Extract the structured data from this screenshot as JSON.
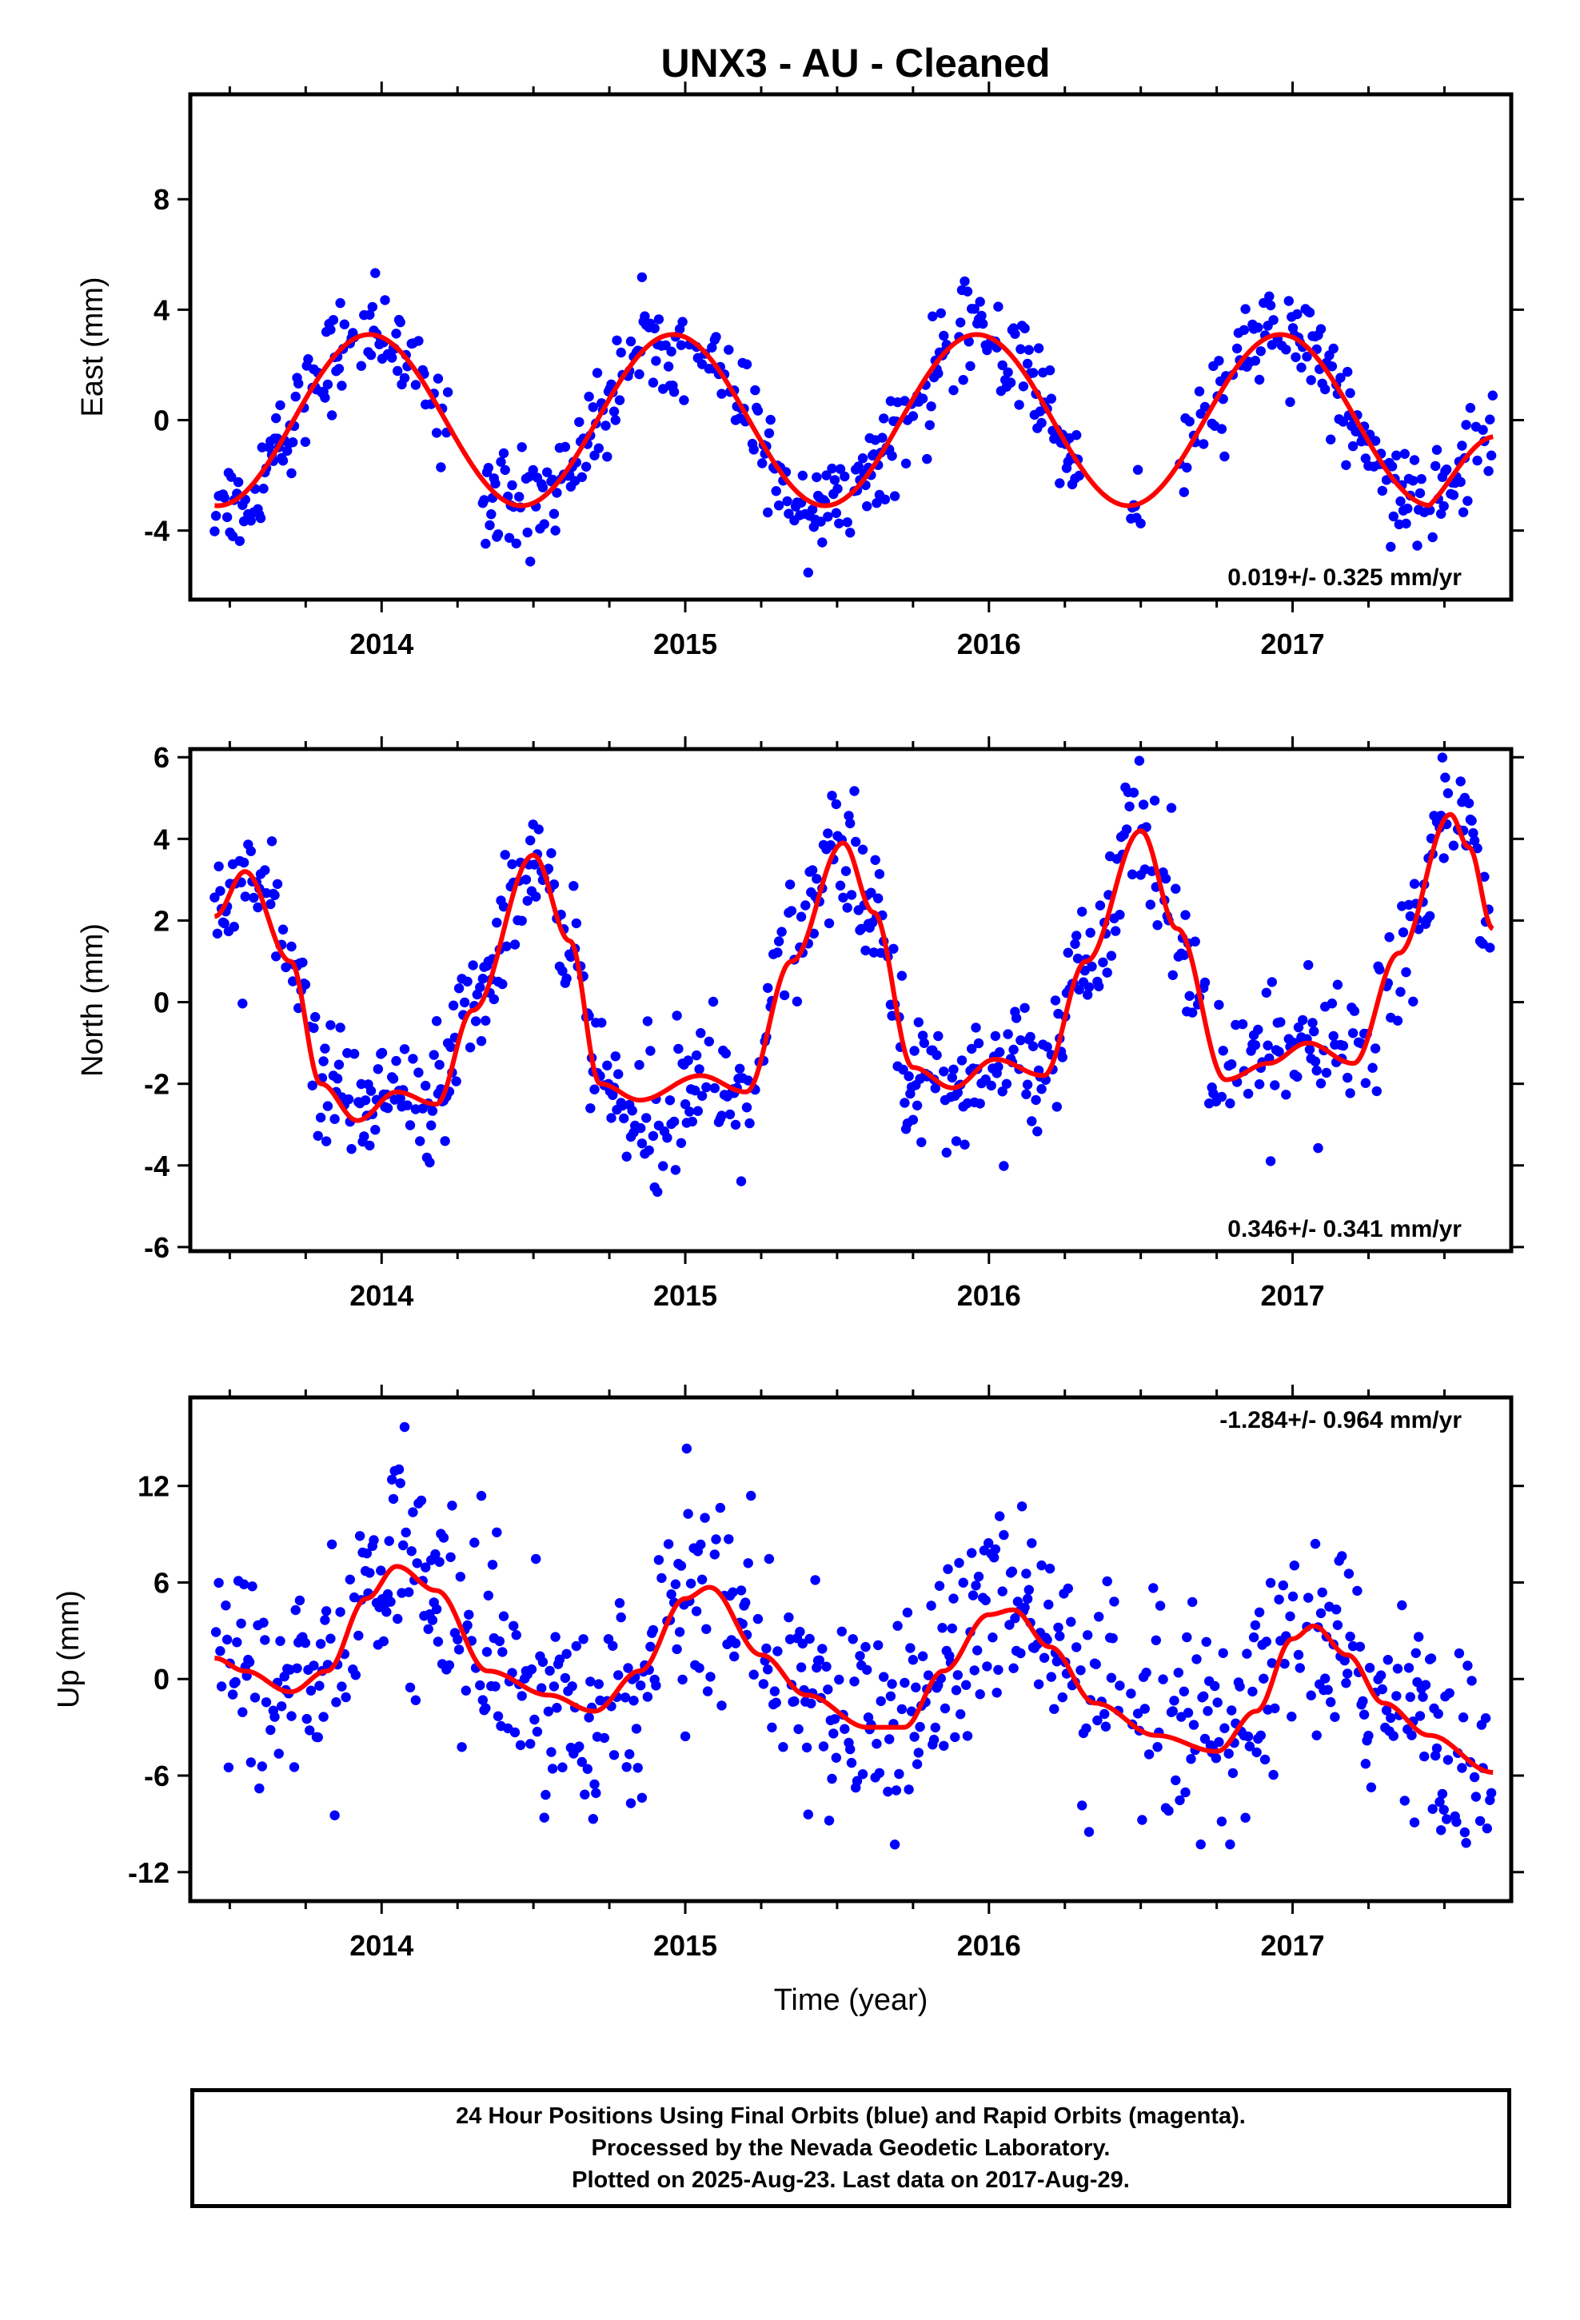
{
  "chart_data": [
    {
      "type": "scatter",
      "title": "UNX3  - AU - Cleaned",
      "ylabel": "East (mm)",
      "xlabel": "",
      "xlim": [
        2013.37,
        2017.72
      ],
      "ylim": [
        -6.5,
        11.8
      ],
      "xticks": [
        "2014",
        "2015",
        "2016",
        "2017"
      ],
      "yticks": [
        "8",
        "4",
        "0",
        "-4"
      ],
      "ytick_values": [
        8,
        4,
        0,
        -4
      ],
      "rate_label": "0.019+/- 0.325 mm/yr",
      "rate_position": "bottom-right",
      "grid": false,
      "series": [
        {
          "values_model": {
            "amplitude_mm": 3.1,
            "period_yr": 1.0,
            "peak_fraction": 0.96,
            "mean_mm": 0.0,
            "noise_mm": 0.9
          }
        },
        {
          "fit": {
            "amplitude_mm": 3.1,
            "period_yr": 1.0,
            "peak_fraction": 0.96,
            "mean_mm": 0.0,
            "end_value_mm": -0.6
          }
        }
      ],
      "data_span": [
        2013.45,
        2017.66
      ],
      "data_gaps": [
        [
          2014.22,
          2014.33
        ],
        [
          2016.3,
          2016.45
        ],
        [
          2016.5,
          2016.62
        ]
      ]
    },
    {
      "type": "scatter",
      "ylabel": "North (mm)",
      "xlabel": "",
      "xlim": [
        2013.37,
        2017.72
      ],
      "ylim": [
        -6.1,
        6.2
      ],
      "xticks": [
        "2014",
        "2015",
        "2016",
        "2017"
      ],
      "yticks": [
        "6",
        "4",
        "2",
        "0",
        "-2",
        "-4",
        "-6"
      ],
      "ytick_values": [
        6,
        4,
        2,
        0,
        -2,
        -4,
        -6
      ],
      "rate_label": "0.346+/- 0.341 mm/yr",
      "rate_position": "bottom-right",
      "grid": false,
      "series": [
        {
          "fit_knots": [
            [
              2013.45,
              2.1
            ],
            [
              2013.55,
              3.2
            ],
            [
              2013.7,
              1.0
            ],
            [
              2013.8,
              -2.0
            ],
            [
              2013.92,
              -2.9
            ],
            [
              2014.05,
              -2.2
            ],
            [
              2014.18,
              -2.5
            ],
            [
              2014.3,
              -0.2
            ],
            [
              2014.5,
              3.6
            ],
            [
              2014.62,
              1.5
            ],
            [
              2014.72,
              -2.0
            ],
            [
              2014.85,
              -2.4
            ],
            [
              2015.05,
              -1.8
            ],
            [
              2015.2,
              -2.2
            ],
            [
              2015.35,
              1.0
            ],
            [
              2015.52,
              3.9
            ],
            [
              2015.62,
              2.2
            ],
            [
              2015.75,
              -1.6
            ],
            [
              2015.88,
              -2.1
            ],
            [
              2016.02,
              -1.4
            ],
            [
              2016.18,
              -1.8
            ],
            [
              2016.32,
              1.0
            ],
            [
              2016.5,
              4.2
            ],
            [
              2016.62,
              1.8
            ],
            [
              2016.78,
              -1.9
            ],
            [
              2016.92,
              -1.5
            ],
            [
              2017.05,
              -1.0
            ],
            [
              2017.2,
              -1.5
            ],
            [
              2017.35,
              1.2
            ],
            [
              2017.52,
              4.6
            ],
            [
              2017.58,
              3.8
            ],
            [
              2017.66,
              1.8
            ]
          ],
          "noise_mm": 0.8
        }
      ],
      "data_span": [
        2013.45,
        2017.66
      ]
    },
    {
      "type": "scatter",
      "ylabel": "Up (mm)",
      "xlabel": "Time (year)",
      "xlim": [
        2013.37,
        2017.72
      ],
      "ylim": [
        -13.8,
        17.5
      ],
      "xticks": [
        "2014",
        "2015",
        "2016",
        "2017"
      ],
      "yticks": [
        "12",
        "6",
        "0",
        "-6",
        "-12"
      ],
      "ytick_values": [
        12,
        6,
        0,
        -6,
        -12
      ],
      "rate_label": "-1.284+/- 0.964 mm/yr",
      "rate_position": "top-right",
      "grid": false,
      "series": [
        {
          "fit_knots": [
            [
              2013.45,
              1.3
            ],
            [
              2013.55,
              0.5
            ],
            [
              2013.7,
              -0.8
            ],
            [
              2013.82,
              0.5
            ],
            [
              2013.95,
              5.0
            ],
            [
              2014.05,
              7.0
            ],
            [
              2014.18,
              5.5
            ],
            [
              2014.35,
              0.5
            ],
            [
              2014.55,
              -1.0
            ],
            [
              2014.7,
              -2.0
            ],
            [
              2014.85,
              0.5
            ],
            [
              2015.0,
              5.0
            ],
            [
              2015.08,
              5.7
            ],
            [
              2015.25,
              1.5
            ],
            [
              2015.4,
              -1.0
            ],
            [
              2015.6,
              -3.0
            ],
            [
              2015.72,
              -3.0
            ],
            [
              2015.85,
              0.5
            ],
            [
              2016.0,
              4.0
            ],
            [
              2016.08,
              4.3
            ],
            [
              2016.2,
              2.0
            ],
            [
              2016.35,
              -1.5
            ],
            [
              2016.55,
              -3.5
            ],
            [
              2016.75,
              -4.5
            ],
            [
              2016.88,
              -2.0
            ],
            [
              2017.0,
              2.5
            ],
            [
              2017.07,
              3.3
            ],
            [
              2017.18,
              1.5
            ],
            [
              2017.3,
              -1.5
            ],
            [
              2017.45,
              -3.5
            ],
            [
              2017.66,
              -5.8
            ]
          ],
          "noise_mm": 3.2
        }
      ],
      "data_span": [
        2013.45,
        2017.66
      ]
    }
  ],
  "colors": {
    "points": "#0000ff",
    "fit": "#ff0000",
    "frame": "#000000",
    "background": "#ffffff"
  },
  "footer": {
    "line1": "24 Hour Positions Using Final Orbits (blue) and Rapid Orbits (magenta).",
    "line2": "Processed by the Nevada Geodetic Laboratory.",
    "line3": "Plotted on 2025-Aug-23. Last data on 2017-Aug-29."
  }
}
